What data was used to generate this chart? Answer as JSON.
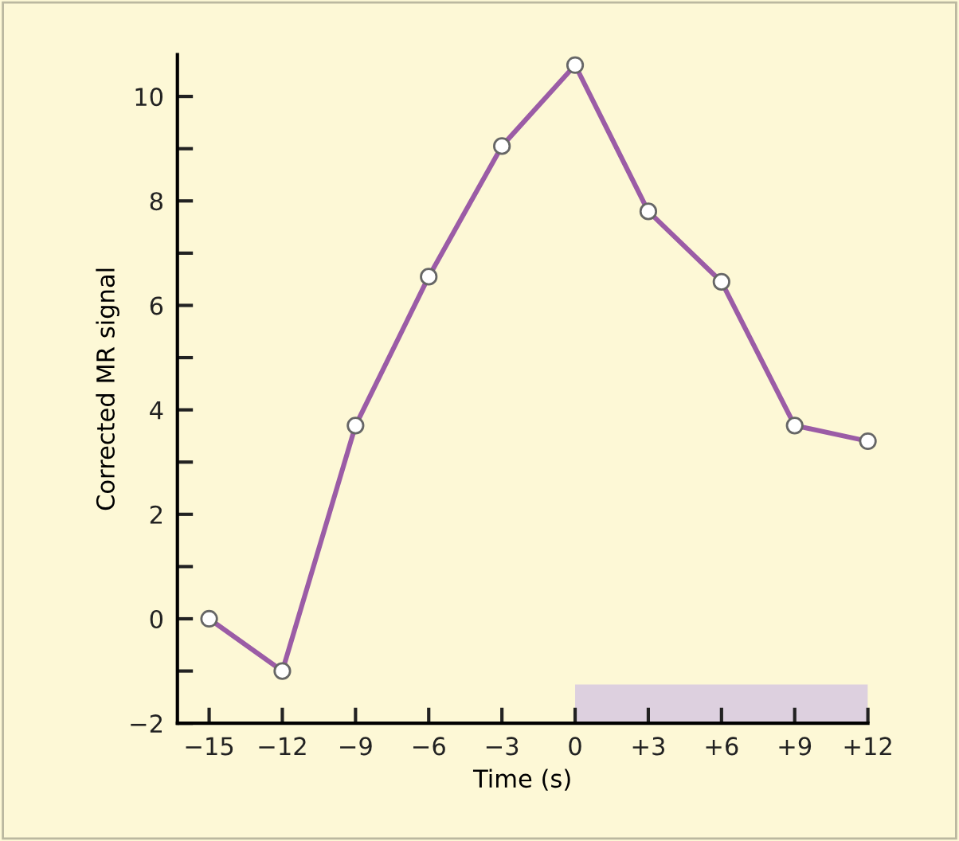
{
  "chart_data": {
    "type": "line",
    "xlabel": "Time (s)",
    "ylabel": "Corrected MR signal",
    "x": [
      -15,
      -12,
      -9,
      -6,
      -3,
      0,
      3,
      6,
      9,
      12
    ],
    "series": [
      {
        "color": "#9b5ca6",
        "values": [
          0.0,
          -1.0,
          3.7,
          6.55,
          9.05,
          10.6,
          7.8,
          6.45,
          3.7,
          3.4
        ]
      }
    ],
    "xlim": [
      -16.3,
      12
    ],
    "ylim": [
      -2,
      10.8
    ],
    "xticks": [
      {
        "value": -15,
        "label": "−15"
      },
      {
        "value": -12,
        "label": "−12"
      },
      {
        "value": -9,
        "label": "−9"
      },
      {
        "value": -6,
        "label": "−6"
      },
      {
        "value": -3,
        "label": "−3"
      },
      0,
      {
        "value": 3,
        "label": "+3"
      },
      {
        "value": 6,
        "label": "+6"
      },
      {
        "value": 9,
        "label": "+9"
      },
      {
        "value": 12,
        "label": "+12"
      }
    ],
    "yticks": [
      {
        "value": -2,
        "label": "−2"
      },
      {
        "value": -1,
        "label": null
      },
      0,
      {
        "value": 1,
        "label": null
      },
      2,
      {
        "value": 3,
        "label": null
      },
      4,
      {
        "value": 5,
        "label": null
      },
      6,
      {
        "value": 7,
        "label": null
      },
      8,
      {
        "value": 9,
        "label": null
      },
      10
    ],
    "bands": [
      {
        "axis": "x",
        "from": 0,
        "to": 12,
        "color": "#ddd0df"
      }
    ],
    "marker": "circle",
    "line_style": "solid",
    "grid": false,
    "legend": false
  }
}
